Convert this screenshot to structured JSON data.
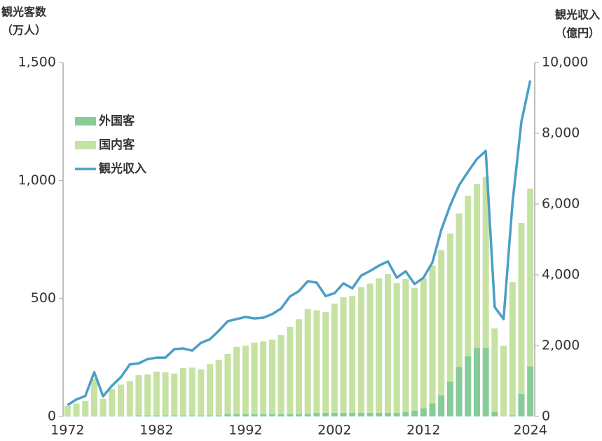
{
  "chart_data": {
    "type": "bar",
    "ylabel": [
      "観光客数",
      "（万人）"
    ],
    "y2label": [
      "観光収入",
      "（億円）"
    ],
    "x": [
      1972,
      1973,
      1974,
      1975,
      1976,
      1977,
      1978,
      1979,
      1980,
      1981,
      1982,
      1983,
      1984,
      1985,
      1986,
      1987,
      1988,
      1989,
      1990,
      1991,
      1992,
      1993,
      1994,
      1995,
      1996,
      1997,
      1998,
      1999,
      2000,
      2001,
      2002,
      2003,
      2004,
      2005,
      2006,
      2007,
      2008,
      2009,
      2010,
      2011,
      2012,
      2013,
      2014,
      2015,
      2016,
      2017,
      2018,
      2019,
      2020,
      2021,
      2022,
      2023,
      2024
    ],
    "xlim": [
      1971.5,
      2024.5
    ],
    "xticks": [
      1972,
      1982,
      1992,
      2002,
      2012,
      2024
    ],
    "ylim": [
      0,
      1500
    ],
    "yticks": [
      0,
      500,
      {
        "value": 1000,
        "label": "1,000"
      },
      {
        "value": 1500,
        "label": "1,500"
      }
    ],
    "y2lim": [
      0,
      10000
    ],
    "y2ticks": [
      0,
      {
        "value": 2000,
        "label": "2,000"
      },
      {
        "value": 4000,
        "label": "4,000"
      },
      {
        "value": 6000,
        "label": "6,000"
      },
      {
        "value": 8000,
        "label": "8,000"
      },
      {
        "value": 10000,
        "label": "10,000"
      }
    ],
    "stacked": true,
    "series": [
      {
        "name": "外国客",
        "type": "bar",
        "color": "#86cb98",
        "values": [
          2,
          2,
          2,
          2,
          2,
          2,
          2,
          2,
          5,
          5,
          5,
          5,
          5,
          5,
          5,
          5,
          5,
          5,
          10,
          10,
          10,
          10,
          10,
          10,
          10,
          10,
          10,
          10,
          15,
          15,
          15,
          15,
          15,
          15,
          15,
          15,
          15,
          15,
          20,
          25,
          35,
          55,
          90,
          148,
          210,
          255,
          290,
          290,
          20,
          1,
          5,
          95,
          213
        ]
      },
      {
        "name": "国内客",
        "type": "bar",
        "color": "#c6e2a3",
        "values": [
          43,
          53,
          63,
          158,
          73,
          113,
          133,
          148,
          170,
          173,
          185,
          182,
          177,
          200,
          202,
          195,
          217,
          235,
          255,
          285,
          290,
          303,
          308,
          315,
          335,
          370,
          402,
          445,
          435,
          428,
          463,
          490,
          495,
          533,
          548,
          570,
          588,
          550,
          563,
          520,
          550,
          585,
          615,
          627,
          650,
          680,
          695,
          725,
          353,
          299,
          565,
          725,
          752
        ]
      },
      {
        "name": "観光収入",
        "type": "line",
        "axis": "y2",
        "color": "#4b9fc5",
        "values": [
          320,
          480,
          580,
          1250,
          570,
          870,
          1110,
          1470,
          1500,
          1620,
          1660,
          1660,
          1900,
          1920,
          1860,
          2080,
          2180,
          2420,
          2690,
          2750,
          2810,
          2770,
          2790,
          2890,
          3050,
          3390,
          3540,
          3820,
          3780,
          3400,
          3480,
          3760,
          3620,
          3980,
          4110,
          4260,
          4380,
          3920,
          4100,
          3740,
          3920,
          4350,
          5270,
          5960,
          6530,
          6910,
          7270,
          7500,
          3090,
          2750,
          6020,
          8320,
          9490
        ]
      }
    ]
  }
}
